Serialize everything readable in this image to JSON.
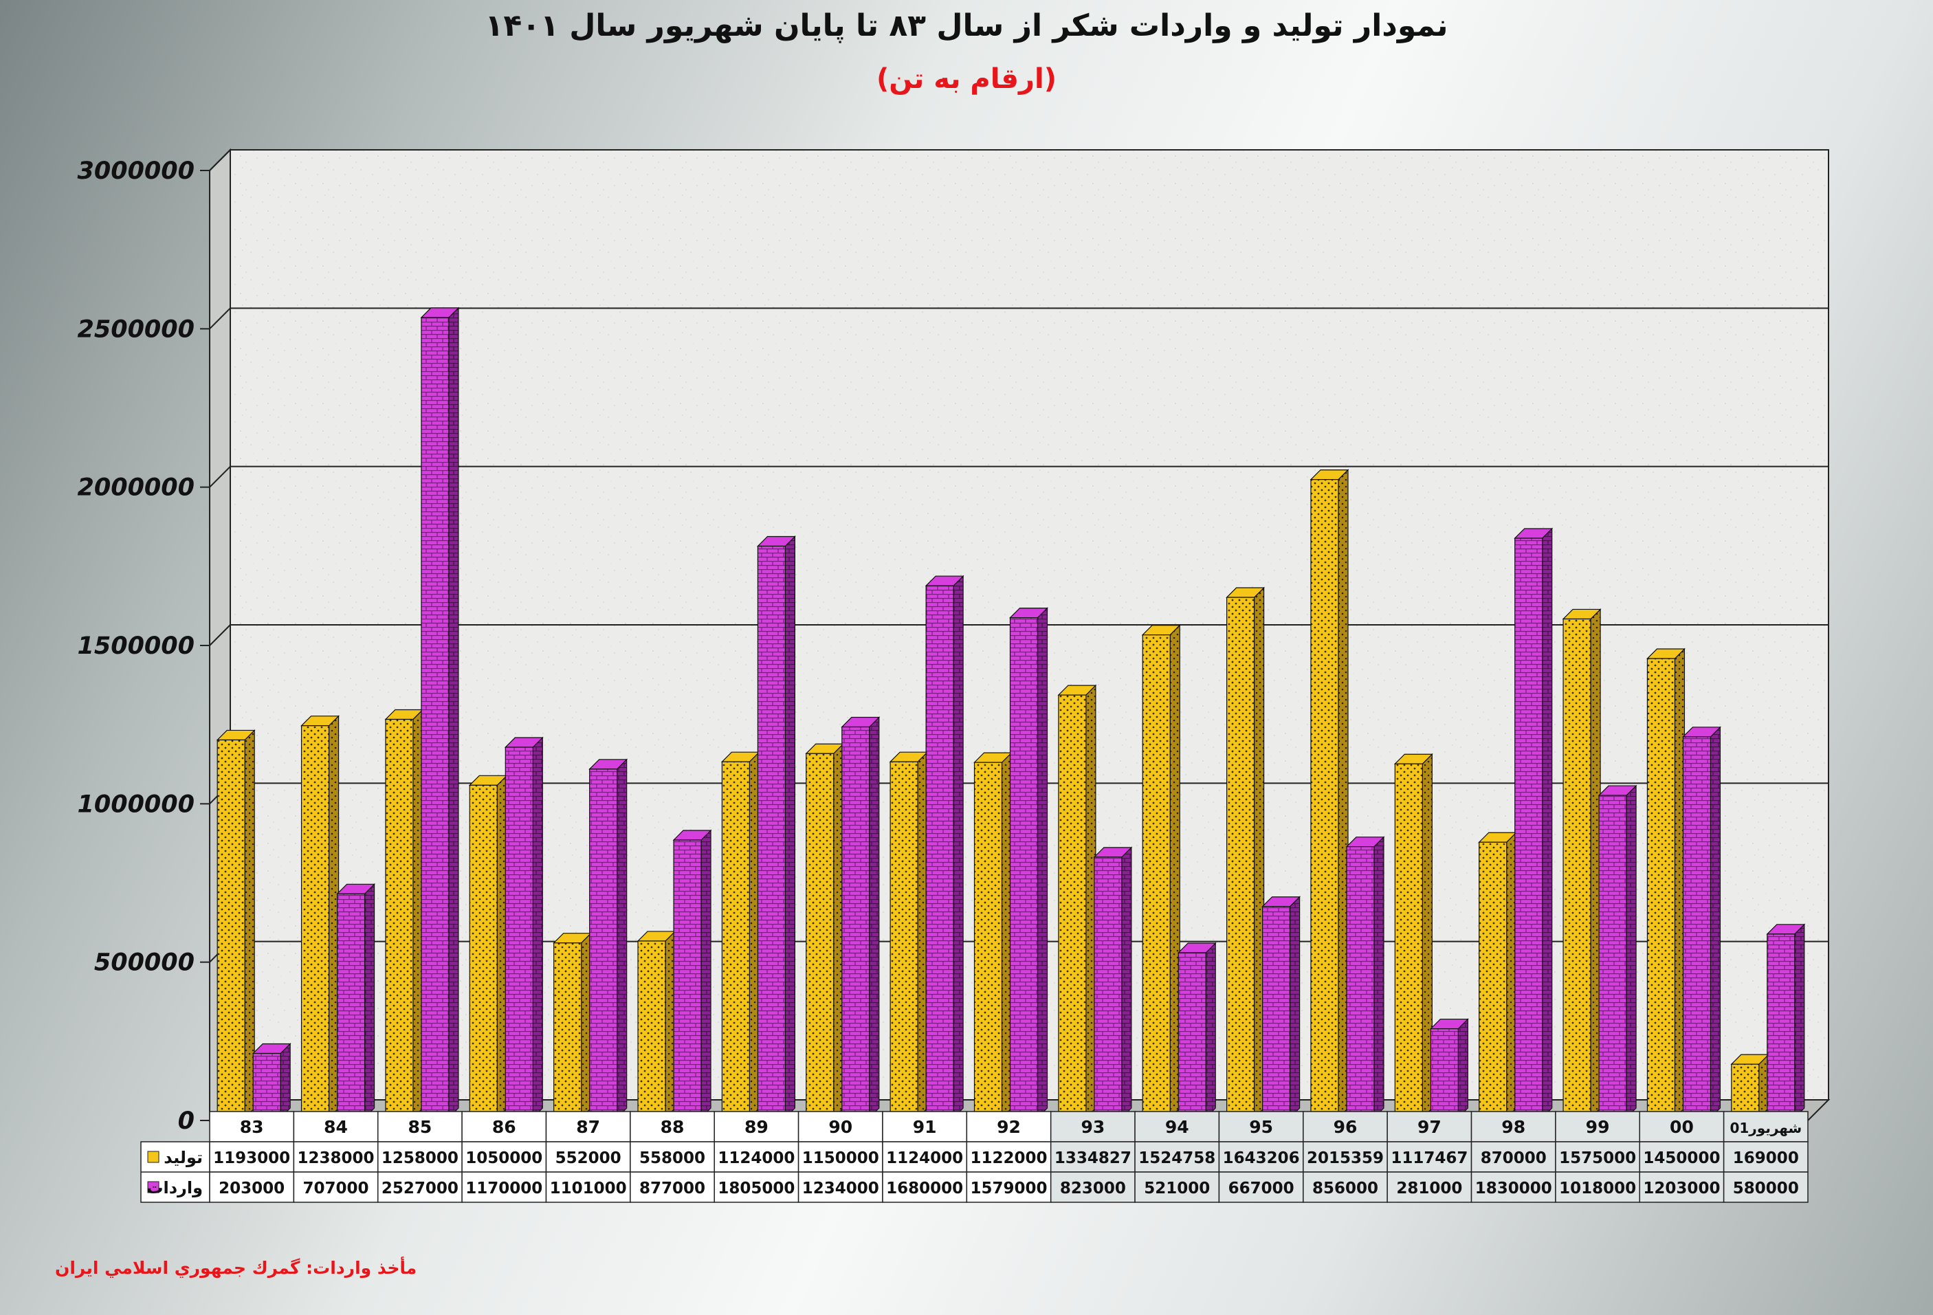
{
  "title": "نمودار تولید و واردات شکر از سال ۸۳ تا پایان شهریور سال ۱۴۰۱",
  "subtitle": "(ارقام به تن)",
  "source": "مأخذ واردات: گمرك جمهوري اسلامي ايران",
  "colors": {
    "production": "#f5c518",
    "production_side": "#b08a12",
    "imports": "#d63fdd",
    "imports_side": "#8a2192",
    "gridline": "#222222",
    "plot_bg": "#eceeeb"
  },
  "chart_data": {
    "type": "bar",
    "title": "نمودار تولید و واردات شکر از سال ۸۳ تا پایان شهریور سال ۱۴۰۱",
    "subtitle": "(ارقام به تن)",
    "categories": [
      "83",
      "84",
      "85",
      "86",
      "87",
      "88",
      "89",
      "90",
      "91",
      "92",
      "93",
      "94",
      "95",
      "96",
      "97",
      "98",
      "99",
      "00",
      "01شهریور"
    ],
    "series": [
      {
        "name": "تولید",
        "color": "#f5c518",
        "values": [
          1193000,
          1238000,
          1258000,
          1050000,
          552000,
          558000,
          1124000,
          1150000,
          1124000,
          1122000,
          1334827,
          1524758,
          1643206,
          2015359,
          1117467,
          870000,
          1575000,
          1450000,
          169000
        ]
      },
      {
        "name": "واردات",
        "color": "#d63fdd",
        "values": [
          203000,
          707000,
          2527000,
          1170000,
          1101000,
          877000,
          1805000,
          1234000,
          1680000,
          1579000,
          823000,
          521000,
          667000,
          856000,
          281000,
          1830000,
          1018000,
          1203000,
          580000
        ]
      }
    ],
    "yticks": [
      "0",
      "500000",
      "1000000",
      "1500000",
      "2000000",
      "2500000",
      "3000000"
    ],
    "ylim": [
      0,
      3000000
    ],
    "grid": true,
    "legend": "data table below chart",
    "style": "3d clustered columns"
  }
}
